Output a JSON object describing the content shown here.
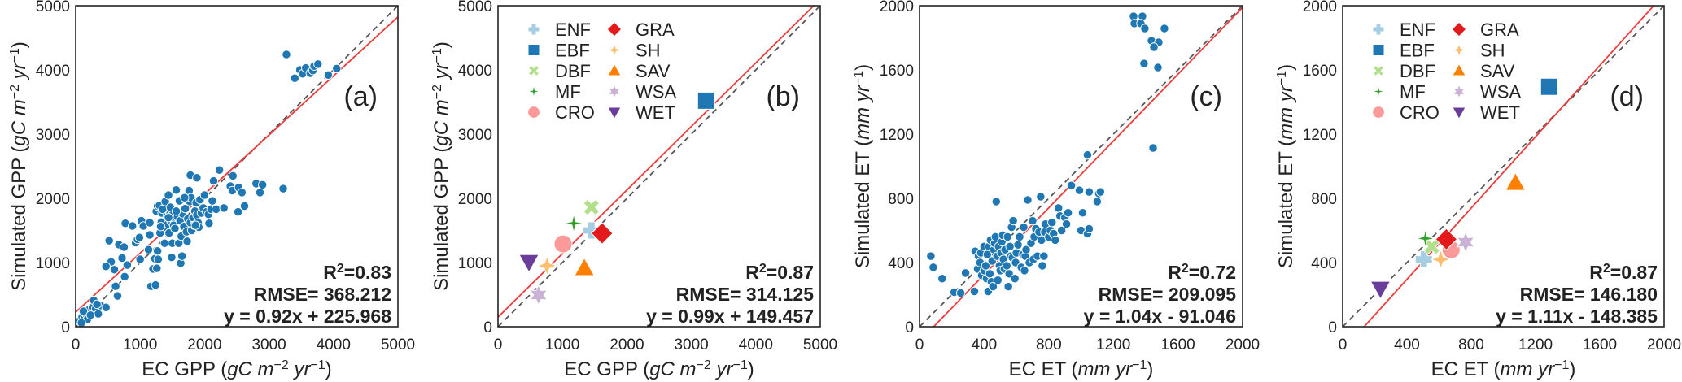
{
  "palette": {
    "ENF": "#a6cee3",
    "EBF": "#1f78b4",
    "DBF": "#b2df8a",
    "MF": "#33a02c",
    "CRO": "#fb9a99",
    "GRA": "#e31a1c",
    "SH": "#fdbf6f",
    "SAV": "#ff7f00",
    "WSA": "#cab2d6",
    "WET": "#6a3d9a",
    "scatter": "#1f77b4",
    "fit_line": "#f03a3a",
    "one_to_one": "#555555"
  },
  "legend": {
    "placement": "top-left",
    "entries": [
      {
        "name": "ENF",
        "marker": "plus"
      },
      {
        "name": "EBF",
        "marker": "square"
      },
      {
        "name": "DBF",
        "marker": "x"
      },
      {
        "name": "MF",
        "marker": "star4"
      },
      {
        "name": "CRO",
        "marker": "circle"
      },
      {
        "name": "GRA",
        "marker": "diamond"
      },
      {
        "name": "SH",
        "marker": "star4-fat"
      },
      {
        "name": "SAV",
        "marker": "triangle-up"
      },
      {
        "name": "WSA",
        "marker": "star6"
      },
      {
        "name": "WET",
        "marker": "triangle-down"
      }
    ]
  },
  "chart_data": [
    {
      "type": "scatter",
      "panel_label": "(a)",
      "xlabel": {
        "main": "EC GPP (",
        "unit": "gC m",
        "sup1": "−2",
        "unit2": " yr",
        "sup2": "−1",
        "close": ")"
      },
      "ylabel": {
        "main": "Simulated GPP (",
        "unit": "gC m",
        "sup1": "−2",
        "unit2": " yr",
        "sup2": "−1",
        "close": ")"
      },
      "xlim": [
        0,
        5000
      ],
      "ylim": [
        0,
        5000
      ],
      "xticks": [
        "0",
        "1000",
        "2000",
        "3000",
        "4000",
        "5000"
      ],
      "yticks": [
        "0",
        "1000",
        "2000",
        "3000",
        "4000",
        "5000"
      ],
      "grid": false,
      "stats": {
        "r2_label": "R",
        "r2_sup": "2",
        "r2_value": "=0.83",
        "rmse": "RMSE= 368.212",
        "equation": "y = 0.92x + 225.968"
      },
      "fit": {
        "slope": 0.92,
        "intercept": 225.968
      },
      "one_to_one": true,
      "points": [
        [
          60,
          90
        ],
        [
          100,
          150
        ],
        [
          130,
          120
        ],
        [
          160,
          200
        ],
        [
          200,
          260
        ],
        [
          120,
          240
        ],
        [
          260,
          300
        ],
        [
          280,
          410
        ],
        [
          310,
          280
        ],
        [
          350,
          200
        ],
        [
          390,
          330
        ],
        [
          470,
          300
        ],
        [
          180,
          110
        ],
        [
          90,
          60
        ],
        [
          230,
          180
        ],
        [
          330,
          350
        ],
        [
          520,
          1340
        ],
        [
          550,
          1010
        ],
        [
          470,
          940
        ],
        [
          600,
          890
        ],
        [
          620,
          630
        ],
        [
          650,
          480
        ],
        [
          670,
          1280
        ],
        [
          720,
          1070
        ],
        [
          750,
          1240
        ],
        [
          770,
          1610
        ],
        [
          800,
          960
        ],
        [
          760,
          780
        ],
        [
          880,
          1570
        ],
        [
          930,
          1310
        ],
        [
          960,
          1360
        ],
        [
          990,
          1390
        ],
        [
          1000,
          1050
        ],
        [
          1020,
          1650
        ],
        [
          1050,
          1570
        ],
        [
          1130,
          1200
        ],
        [
          1150,
          1620
        ],
        [
          1170,
          630
        ],
        [
          1200,
          900
        ],
        [
          1230,
          1060
        ],
        [
          1240,
          650
        ],
        [
          1260,
          910
        ],
        [
          1270,
          1180
        ],
        [
          1280,
          1050
        ],
        [
          1250,
          1800
        ],
        [
          1270,
          1880
        ],
        [
          1300,
          1890
        ],
        [
          1310,
          1460
        ],
        [
          1330,
          1630
        ],
        [
          1340,
          1770
        ],
        [
          1350,
          1830
        ],
        [
          1380,
          1300
        ],
        [
          1390,
          1950
        ],
        [
          1400,
          1550
        ],
        [
          1420,
          1720
        ],
        [
          1430,
          1600
        ],
        [
          1440,
          2050
        ],
        [
          1450,
          1460
        ],
        [
          1460,
          1750
        ],
        [
          1470,
          1860
        ],
        [
          1480,
          1640
        ],
        [
          1490,
          1080
        ],
        [
          1500,
          1740
        ],
        [
          1500,
          1300
        ],
        [
          1520,
          1580
        ],
        [
          1540,
          1530
        ],
        [
          1560,
          2130
        ],
        [
          1580,
          1710
        ],
        [
          1600,
          1300
        ],
        [
          1610,
          1960
        ],
        [
          1620,
          1650
        ],
        [
          1630,
          990
        ],
        [
          1640,
          1410
        ],
        [
          1650,
          1100
        ],
        [
          1660,
          1760
        ],
        [
          1680,
          1560
        ],
        [
          1700,
          1840
        ],
        [
          1720,
          1480
        ],
        [
          1730,
          1330
        ],
        [
          1740,
          1680
        ],
        [
          1760,
          2120
        ],
        [
          1770,
          1950
        ],
        [
          1780,
          1620
        ],
        [
          1790,
          2010
        ],
        [
          1800,
          1500
        ],
        [
          1820,
          1700
        ],
        [
          1840,
          1580
        ],
        [
          1850,
          1800
        ],
        [
          1870,
          1930
        ],
        [
          1880,
          1740
        ],
        [
          1900,
          1620
        ],
        [
          1910,
          1550
        ],
        [
          1930,
          1980
        ],
        [
          1950,
          1770
        ],
        [
          1980,
          1850
        ],
        [
          2000,
          2050
        ],
        [
          2030,
          1790
        ],
        [
          2060,
          1750
        ],
        [
          2070,
          1610
        ],
        [
          2100,
          1830
        ],
        [
          2120,
          1960
        ],
        [
          2140,
          2270
        ],
        [
          2180,
          1830
        ],
        [
          2230,
          2440
        ],
        [
          2300,
          1850
        ],
        [
          2400,
          2190
        ],
        [
          2430,
          2120
        ],
        [
          2440,
          2350
        ],
        [
          2520,
          1790
        ],
        [
          2530,
          2170
        ],
        [
          2580,
          2090
        ],
        [
          2620,
          1880
        ],
        [
          1780,
          2360
        ],
        [
          1880,
          2320
        ],
        [
          1860,
          1580
        ],
        [
          1690,
          2010
        ],
        [
          1560,
          1800
        ],
        [
          1440,
          1700
        ],
        [
          1320,
          1560
        ],
        [
          1150,
          1430
        ],
        [
          2800,
          2230
        ],
        [
          2860,
          2090
        ],
        [
          2900,
          2210
        ],
        [
          3220,
          2150
        ],
        [
          3270,
          4240
        ],
        [
          3400,
          3870
        ],
        [
          3480,
          4000
        ],
        [
          3520,
          3940
        ],
        [
          3570,
          4030
        ],
        [
          3640,
          3950
        ],
        [
          3680,
          3990
        ],
        [
          3700,
          4060
        ],
        [
          3760,
          4090
        ],
        [
          3920,
          3920
        ],
        [
          4050,
          4020
        ]
      ]
    },
    {
      "type": "scatter",
      "panel_label": "(b)",
      "xlabel": {
        "main": "EC GPP (",
        "unit": "gC m",
        "sup1": "−2",
        "unit2": " yr",
        "sup2": "−1",
        "close": ")"
      },
      "ylabel": {
        "main": "Simulated GPP (",
        "unit": "gC m",
        "sup1": "−2",
        "unit2": " yr",
        "sup2": "−1",
        "close": ")"
      },
      "xlim": [
        0,
        5000
      ],
      "ylim": [
        0,
        5000
      ],
      "xticks": [
        "0",
        "1000",
        "2000",
        "3000",
        "4000",
        "5000"
      ],
      "yticks": [
        "0",
        "1000",
        "2000",
        "3000",
        "4000",
        "5000"
      ],
      "grid": false,
      "stats": {
        "r2_label": "R",
        "r2_sup": "2",
        "r2_value": "=0.87",
        "rmse": "RMSE= 314.125",
        "equation": "y = 0.99x + 149.457"
      },
      "fit": {
        "slope": 0.99,
        "intercept": 149.457
      },
      "one_to_one": true,
      "legend": true,
      "categories": [
        {
          "name": "ENF",
          "x": 1450,
          "y": 1500
        },
        {
          "name": "EBF",
          "x": 3230,
          "y": 3520
        },
        {
          "name": "DBF",
          "x": 1450,
          "y": 1860
        },
        {
          "name": "MF",
          "x": 1175,
          "y": 1610
        },
        {
          "name": "CRO",
          "x": 1010,
          "y": 1290
        },
        {
          "name": "GRA",
          "x": 1615,
          "y": 1455
        },
        {
          "name": "SH",
          "x": 760,
          "y": 950
        },
        {
          "name": "SAV",
          "x": 1340,
          "y": 910
        },
        {
          "name": "WSA",
          "x": 630,
          "y": 495
        },
        {
          "name": "WET",
          "x": 480,
          "y": 1010
        }
      ]
    },
    {
      "type": "scatter",
      "panel_label": "(c)",
      "xlabel": {
        "main": "EC ET (",
        "unit": "mm yr",
        "sup1": "",
        "unit2": "",
        "sup2": "−1",
        "close": ")"
      },
      "ylabel": {
        "main": "Simulated ET (",
        "unit": "mm yr",
        "sup1": "",
        "unit2": "",
        "sup2": "−1",
        "close": ")"
      },
      "xlim": [
        0,
        2000
      ],
      "ylim": [
        0,
        2000
      ],
      "xticks": [
        "0",
        "400",
        "800",
        "1200",
        "1600",
        "2000"
      ],
      "yticks": [
        "0",
        "400",
        "800",
        "1200",
        "1600",
        "2000"
      ],
      "grid": false,
      "stats": {
        "r2_label": "R",
        "r2_sup": "2",
        "r2_value": "=0.72",
        "rmse": "RMSE= 209.095",
        "equation": "y = 1.04x - 91.046"
      },
      "fit": {
        "slope": 1.04,
        "intercept": -91.046
      },
      "one_to_one": true,
      "points": [
        [
          70,
          440
        ],
        [
          85,
          370
        ],
        [
          140,
          300
        ],
        [
          215,
          215
        ],
        [
          255,
          210
        ],
        [
          285,
          335
        ],
        [
          340,
          220
        ],
        [
          345,
          470
        ],
        [
          360,
          360
        ],
        [
          365,
          440
        ],
        [
          375,
          400
        ],
        [
          380,
          460
        ],
        [
          385,
          320
        ],
        [
          400,
          500
        ],
        [
          400,
          350
        ],
        [
          410,
          380
        ],
        [
          415,
          300
        ],
        [
          420,
          450
        ],
        [
          425,
          220
        ],
        [
          430,
          500
        ],
        [
          435,
          330
        ],
        [
          440,
          540
        ],
        [
          445,
          280
        ],
        [
          450,
          410
        ],
        [
          455,
          250
        ],
        [
          460,
          480
        ],
        [
          465,
          520
        ],
        [
          470,
          560
        ],
        [
          475,
          780
        ],
        [
          480,
          440
        ],
        [
          485,
          290
        ],
        [
          490,
          500
        ],
        [
          495,
          380
        ],
        [
          500,
          350
        ],
        [
          505,
          460
        ],
        [
          510,
          530
        ],
        [
          515,
          570
        ],
        [
          520,
          420
        ],
        [
          525,
          360
        ],
        [
          530,
          480
        ],
        [
          540,
          380
        ],
        [
          545,
          560
        ],
        [
          550,
          250
        ],
        [
          555,
          330
        ],
        [
          560,
          500
        ],
        [
          565,
          440
        ],
        [
          570,
          620
        ],
        [
          575,
          430
        ],
        [
          580,
          660
        ],
        [
          590,
          300
        ],
        [
          595,
          400
        ],
        [
          600,
          460
        ],
        [
          610,
          510
        ],
        [
          620,
          560
        ],
        [
          630,
          370
        ],
        [
          640,
          450
        ],
        [
          645,
          620
        ],
        [
          650,
          350
        ],
        [
          655,
          440
        ],
        [
          660,
          480
        ],
        [
          670,
          790
        ],
        [
          680,
          400
        ],
        [
          690,
          520
        ],
        [
          700,
          660
        ],
        [
          705,
          420
        ],
        [
          710,
          560
        ],
        [
          720,
          610
        ],
        [
          730,
          440
        ],
        [
          740,
          590
        ],
        [
          750,
          810
        ],
        [
          755,
          540
        ],
        [
          760,
          380
        ],
        [
          770,
          440
        ],
        [
          775,
          590
        ],
        [
          780,
          640
        ],
        [
          800,
          560
        ],
        [
          810,
          600
        ],
        [
          820,
          650
        ],
        [
          830,
          580
        ],
        [
          840,
          540
        ],
        [
          860,
          740
        ],
        [
          870,
          690
        ],
        [
          880,
          600
        ],
        [
          900,
          680
        ],
        [
          910,
          640
        ],
        [
          920,
          710
        ],
        [
          940,
          880
        ],
        [
          990,
          850
        ],
        [
          1000,
          600
        ],
        [
          1010,
          710
        ],
        [
          1040,
          580
        ],
        [
          1050,
          610
        ],
        [
          1050,
          840
        ],
        [
          1100,
          780
        ],
        [
          1110,
          830
        ],
        [
          1040,
          1070
        ],
        [
          1120,
          840
        ],
        [
          1325,
          1934
        ],
        [
          1380,
          1934
        ],
        [
          1330,
          1889
        ],
        [
          1370,
          1889
        ],
        [
          1395,
          1858
        ],
        [
          1516,
          1858
        ],
        [
          1436,
          1782
        ],
        [
          1481,
          1772
        ],
        [
          1451,
          1742
        ],
        [
          1390,
          1640
        ],
        [
          1476,
          1615
        ],
        [
          1446,
          1114
        ]
      ]
    },
    {
      "type": "scatter",
      "panel_label": "(d)",
      "xlabel": {
        "main": "EC ET (",
        "unit": "mm yr",
        "sup1": "",
        "unit2": "",
        "sup2": "−1",
        "close": ")"
      },
      "ylabel": {
        "main": "Simulated ET (",
        "unit": "mm yr",
        "sup1": "",
        "unit2": "",
        "sup2": "−1",
        "close": ")"
      },
      "xlim": [
        0,
        2000
      ],
      "ylim": [
        0,
        2000
      ],
      "xticks": [
        "0",
        "400",
        "800",
        "1200",
        "1600",
        "2000"
      ],
      "yticks": [
        "0",
        "400",
        "800",
        "1200",
        "1600",
        "2000"
      ],
      "grid": false,
      "stats": {
        "r2_label": "R",
        "r2_sup": "2",
        "r2_value": "=0.87",
        "rmse": "RMSE= 146.180",
        "equation": "y = 1.11x - 148.385"
      },
      "fit": {
        "slope": 1.11,
        "intercept": -148.385
      },
      "one_to_one": true,
      "legend": true,
      "categories": [
        {
          "name": "ENF",
          "x": 505,
          "y": 420
        },
        {
          "name": "EBF",
          "x": 1285,
          "y": 1495
        },
        {
          "name": "DBF",
          "x": 555,
          "y": 500
        },
        {
          "name": "MF",
          "x": 515,
          "y": 550
        },
        {
          "name": "CRO",
          "x": 675,
          "y": 480
        },
        {
          "name": "GRA",
          "x": 645,
          "y": 545
        },
        {
          "name": "SH",
          "x": 610,
          "y": 420
        },
        {
          "name": "SAV",
          "x": 1075,
          "y": 895
        },
        {
          "name": "WSA",
          "x": 765,
          "y": 527
        },
        {
          "name": "WET",
          "x": 235,
          "y": 238
        }
      ]
    }
  ]
}
